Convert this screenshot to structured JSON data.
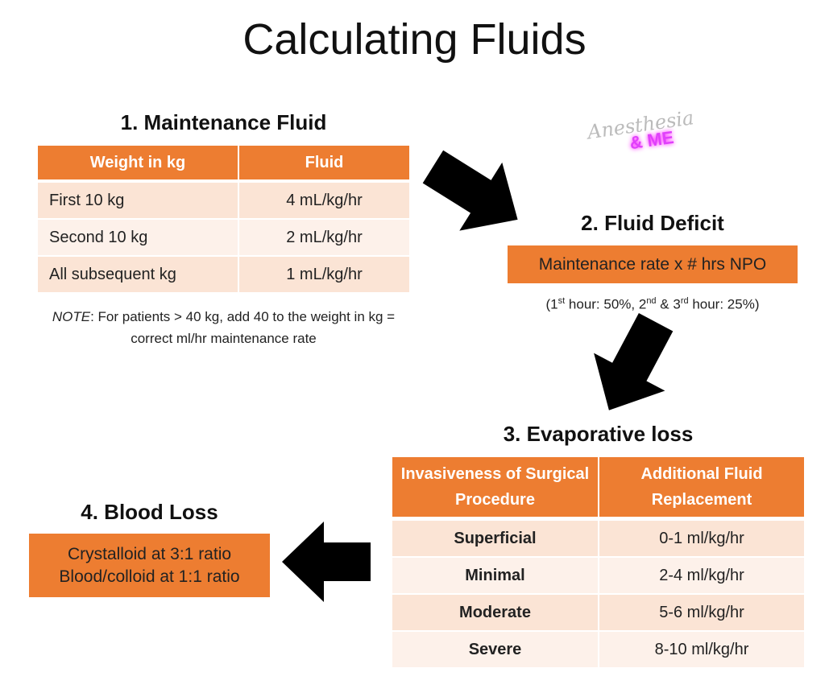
{
  "title": "Calculating Fluids",
  "logo": {
    "line1": "Anesthesia",
    "line2": "& ME"
  },
  "maintenance": {
    "title": "1. Maintenance Fluid",
    "table": {
      "header": [
        "Weight in kg",
        "Fluid"
      ],
      "rows": [
        [
          "First 10 kg",
          "4 mL/kg/hr"
        ],
        [
          "Second 10 kg",
          "2 mL/kg/hr"
        ],
        [
          "All subsequent kg",
          "1 mL/kg/hr"
        ]
      ]
    },
    "note_label": "NOTE",
    "note_text": ": For patients > 40 kg, add 40 to the weight in kg = correct ml/hr maintenance rate"
  },
  "deficit": {
    "title": "2. Fluid Deficit",
    "box": "Maintenance rate x # hrs NPO",
    "note_parts": [
      "(1",
      "st",
      " hour: 50%, 2",
      "nd",
      " & 3",
      "rd",
      " hour: 25%)"
    ]
  },
  "evaporative": {
    "title": "3. Evaporative loss",
    "table": {
      "header": [
        "Invasiveness of Surgical Procedure",
        "Additional Fluid Replacement"
      ],
      "rows": [
        [
          "Superficial",
          "0-1 ml/kg/hr"
        ],
        [
          "Minimal",
          "2-4 ml/kg/hr"
        ],
        [
          "Moderate",
          "5-6 ml/kg/hr"
        ],
        [
          "Severe",
          "8-10 ml/kg/hr"
        ]
      ]
    }
  },
  "blood_loss": {
    "title": "4. Blood Loss",
    "lines": [
      "Crystalloid at 3:1 ratio",
      "Blood/colloid at 1:1 ratio"
    ]
  }
}
